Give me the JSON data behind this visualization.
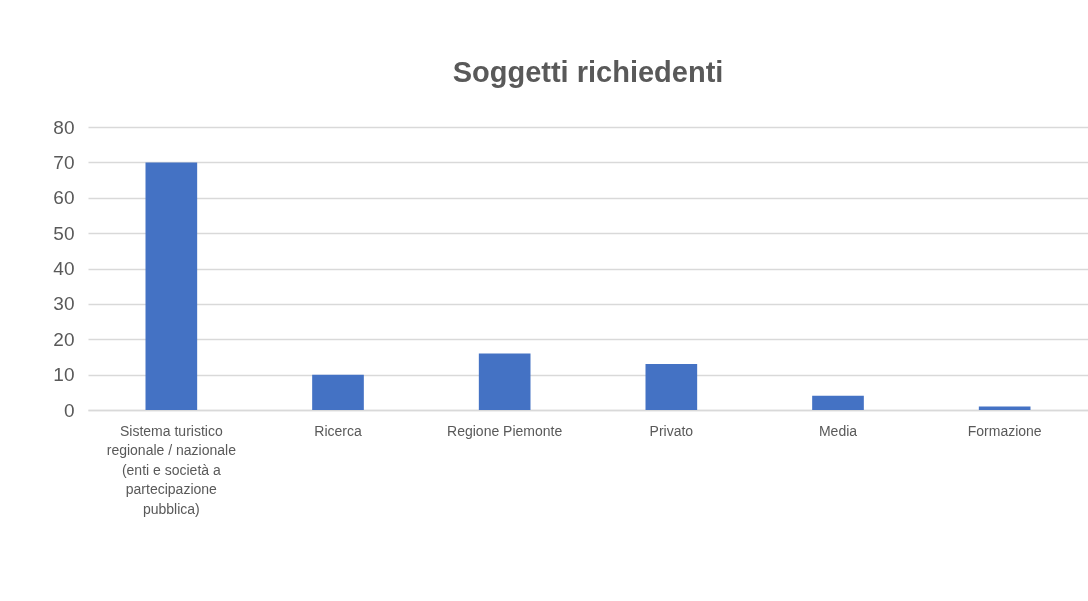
{
  "chart_data": {
    "type": "bar",
    "title": "Soggetti richiedenti",
    "categories": [
      "Sistema turistico regionale / nazionale (enti e società a partecipazione pubblica)",
      "Ricerca",
      "Regione Piemonte",
      "Privato",
      "Media",
      "Formazione"
    ],
    "values": [
      70,
      10,
      16,
      13,
      4,
      1
    ],
    "color": "#4472c4",
    "ylim": [
      0,
      80
    ],
    "yticks": [
      0,
      10,
      20,
      30,
      40,
      50,
      60,
      70,
      80
    ],
    "grid": true
  }
}
